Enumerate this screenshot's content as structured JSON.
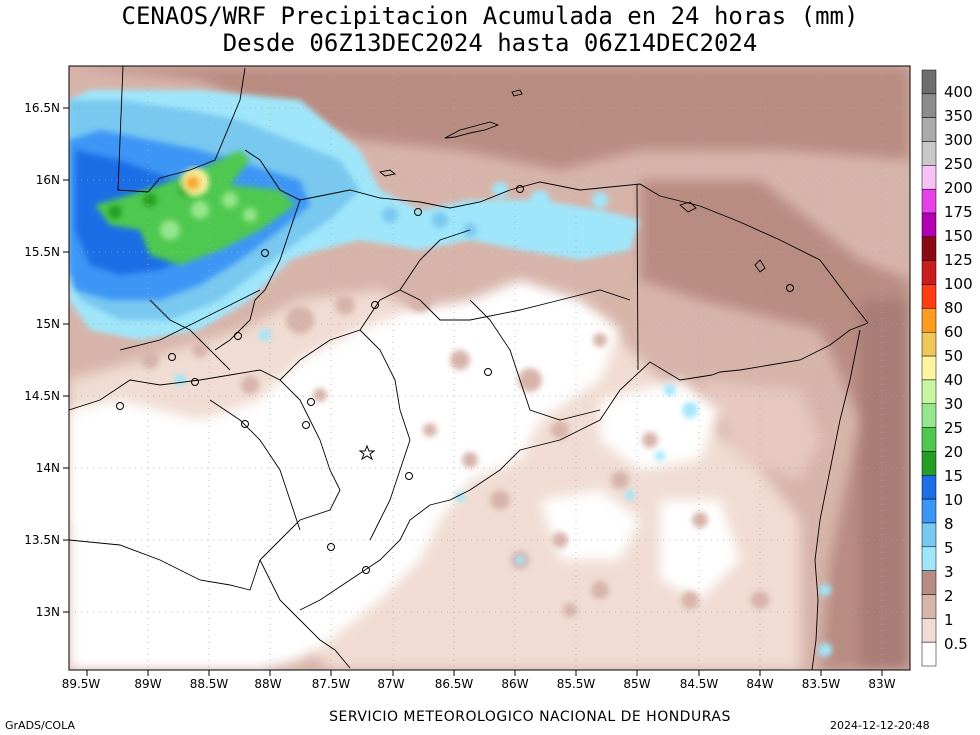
{
  "title": {
    "line1": "CENAOS/WRF Precipitacion Acumulada en 24 horas (mm)",
    "line2": "Desde 06Z13DEC2024 hasta 06Z14DEC2024"
  },
  "map": {
    "lon_ticks": [
      "89.5W",
      "89W",
      "88.5W",
      "88W",
      "87.5W",
      "87W",
      "86.5W",
      "86W",
      "85.5W",
      "85W",
      "84.5W",
      "84W",
      "83.5W",
      "83W"
    ],
    "lat_ticks": [
      "16.5N",
      "16N",
      "15.5N",
      "15N",
      "14.5N",
      "14N",
      "13.5N",
      "13N"
    ],
    "colorbar": {
      "labels": [
        "400",
        "350",
        "300",
        "250",
        "200",
        "175",
        "150",
        "125",
        "100",
        "80",
        "60",
        "50",
        "40",
        "30",
        "25",
        "20",
        "15",
        "10",
        "8",
        "5",
        "3",
        "2",
        "1",
        "0.5"
      ],
      "colors": [
        "#6e6e6e",
        "#8c8c8c",
        "#aaaaaa",
        "#c8c8c8",
        "#f7c0f7",
        "#e640e6",
        "#b000b0",
        "#8c0a14",
        "#c81e1e",
        "#ff3c14",
        "#ff9b1e",
        "#f0c85a",
        "#fff5a0",
        "#c8f5a0",
        "#96e68c",
        "#50c850",
        "#23a023",
        "#1e6ee6",
        "#3c96f5",
        "#78c8f0",
        "#a0e6fa",
        "#b98c82",
        "#d7b4aa",
        "#f0dcd2",
        "#ffffff"
      ]
    }
  },
  "footer": {
    "left": "GrADS/COLA",
    "center": "SERVICIO METEOROLOGICO NACIONAL DE HONDURAS",
    "right": "2024-12-12-20:48"
  }
}
